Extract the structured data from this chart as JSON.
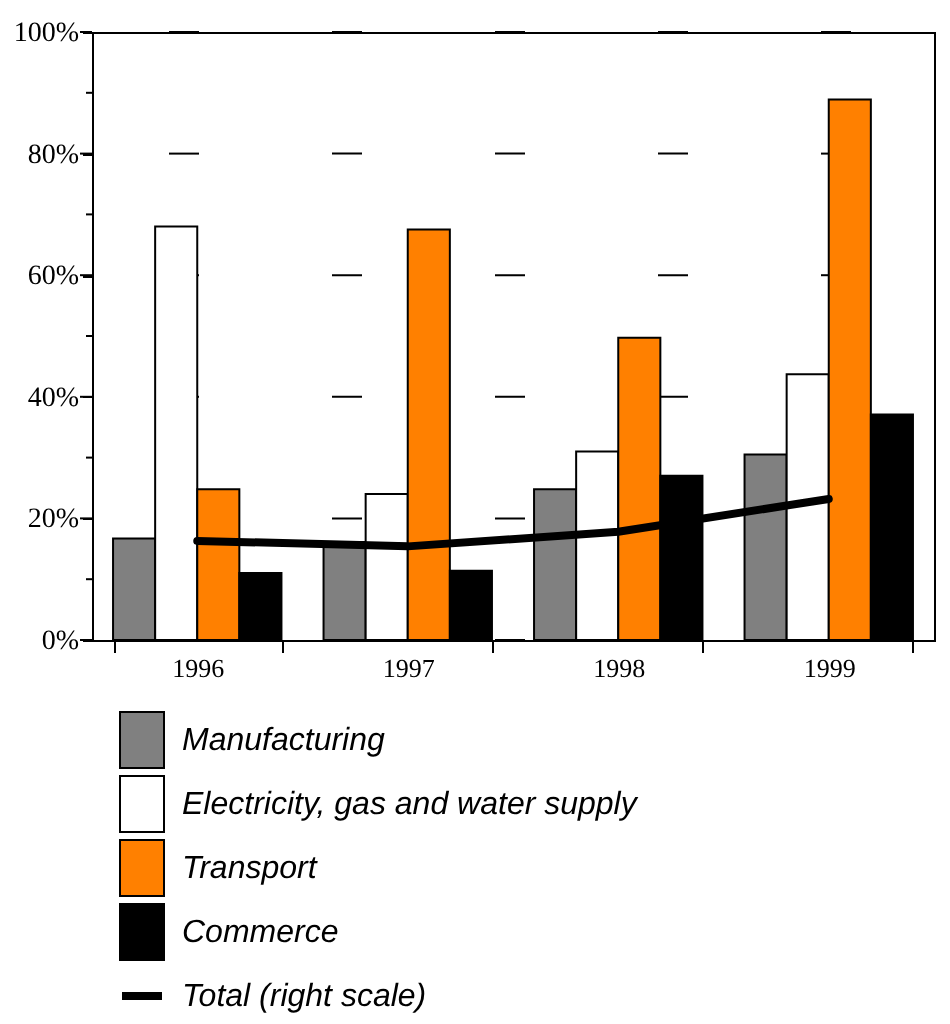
{
  "chart_data": {
    "type": "bar",
    "categories": [
      "1996",
      "1997",
      "1998",
      "1999"
    ],
    "series": [
      {
        "name": "Manufacturing",
        "color": "#808080",
        "values": [
          16.7,
          16.1,
          24.8,
          30.5
        ]
      },
      {
        "name": "Electricity, gas and water supply",
        "color": "#ffffff",
        "values": [
          68,
          24,
          31,
          43.7
        ]
      },
      {
        "name": "Transport",
        "color": "#ff8000",
        "values": [
          24.8,
          67.5,
          49.7,
          88.9
        ]
      },
      {
        "name": "Commerce",
        "color": "#000000",
        "values": [
          11,
          11.4,
          27,
          37.1
        ]
      },
      {
        "name": "Total (right scale)",
        "type": "line",
        "color": "#000000",
        "values": [
          16.3,
          15.4,
          17.8,
          23.2
        ]
      }
    ],
    "ylim": [
      0,
      100
    ],
    "yticks": [
      {
        "value": 0,
        "label": "0%"
      },
      {
        "value": 10,
        "label": null
      },
      {
        "value": 20,
        "label": "20%"
      },
      {
        "value": 30,
        "label": null
      },
      {
        "value": 40,
        "label": "40%"
      },
      {
        "value": 50,
        "label": null
      },
      {
        "value": 60,
        "label": "60%"
      },
      {
        "value": 70,
        "label": null
      },
      {
        "value": 80,
        "label": "80%"
      },
      {
        "value": 90,
        "label": null
      },
      {
        "value": 100,
        "label": "100%"
      }
    ],
    "grid": "y",
    "legend": "bottom",
    "line_style": "solid",
    "marker": "none"
  }
}
